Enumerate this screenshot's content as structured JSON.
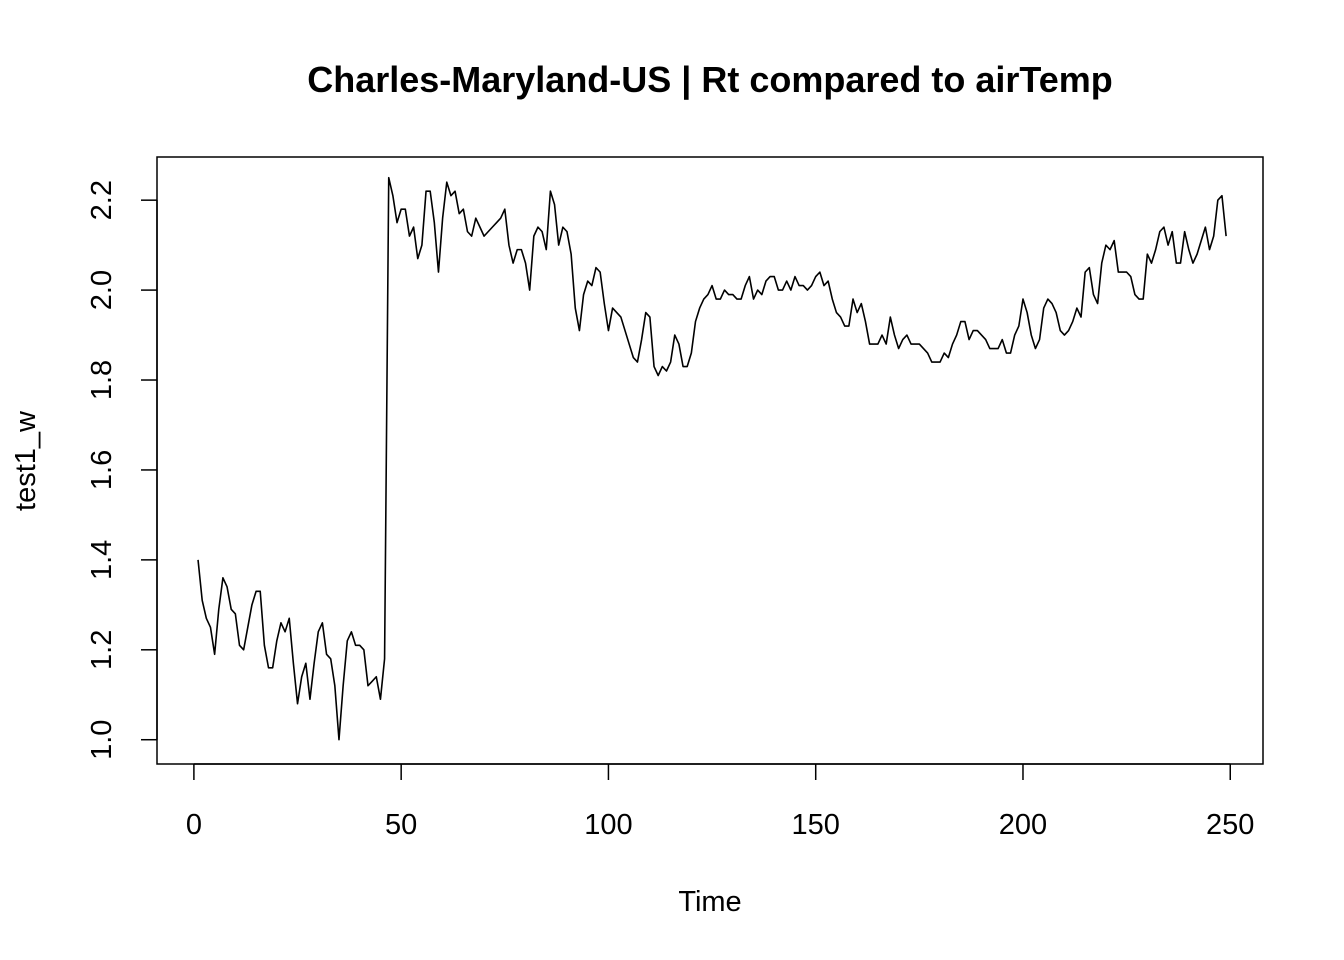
{
  "chart_data": {
    "type": "line",
    "title": "Charles-Maryland-US | Rt compared to airTemp",
    "xlabel": "Time",
    "ylabel": "test1_w",
    "xlim": [
      -8.9,
      257.9
    ],
    "ylim": [
      0.946,
      2.296
    ],
    "x_ticks": [
      0,
      50,
      100,
      150,
      200,
      250
    ],
    "y_ticks": [
      1.0,
      1.2,
      1.4,
      1.6,
      1.8,
      2.0,
      2.2
    ],
    "x_tick_labels": [
      "0",
      "50",
      "100",
      "150",
      "200",
      "250"
    ],
    "y_tick_labels": [
      "1.0",
      "1.2",
      "1.4",
      "1.6",
      "1.8",
      "2.0",
      "2.2"
    ],
    "grid": false,
    "line_color": "#000000",
    "series": [
      {
        "x_start": 1,
        "x_step": 1,
        "values": [
          1.4,
          1.31,
          1.27,
          1.25,
          1.19,
          1.29,
          1.36,
          1.34,
          1.29,
          1.28,
          1.21,
          1.2,
          1.25,
          1.3,
          1.33,
          1.33,
          1.21,
          1.16,
          1.16,
          1.22,
          1.26,
          1.24,
          1.27,
          1.17,
          1.08,
          1.14,
          1.17,
          1.09,
          1.17,
          1.24,
          1.26,
          1.19,
          1.18,
          1.12,
          1.0,
          1.12,
          1.22,
          1.24,
          1.21,
          1.21,
          1.2,
          1.12,
          1.13,
          1.14,
          1.09,
          1.18,
          2.25,
          2.21,
          2.15,
          2.18,
          2.18,
          2.12,
          2.14,
          2.07,
          2.1,
          2.22,
          2.22,
          2.15,
          2.04,
          2.16,
          2.24,
          2.21,
          2.22,
          2.17,
          2.18,
          2.13,
          2.12,
          2.16,
          2.14,
          2.12,
          2.13,
          2.14,
          2.15,
          2.16,
          2.18,
          2.1,
          2.06,
          2.09,
          2.09,
          2.06,
          2.0,
          2.12,
          2.14,
          2.13,
          2.09,
          2.22,
          2.19,
          2.1,
          2.14,
          2.13,
          2.08,
          1.96,
          1.91,
          1.99,
          2.02,
          2.01,
          2.05,
          2.04,
          1.97,
          1.91,
          1.96,
          1.95,
          1.94,
          1.91,
          1.88,
          1.85,
          1.84,
          1.89,
          1.95,
          1.94,
          1.83,
          1.81,
          1.83,
          1.82,
          1.84,
          1.9,
          1.88,
          1.83,
          1.83,
          1.86,
          1.93,
          1.96,
          1.98,
          1.99,
          2.01,
          1.98,
          1.98,
          2.0,
          1.99,
          1.99,
          1.98,
          1.98,
          2.01,
          2.03,
          1.98,
          2.0,
          1.99,
          2.02,
          2.03,
          2.03,
          2.0,
          2.0,
          2.02,
          2.0,
          2.03,
          2.01,
          2.01,
          2.0,
          2.01,
          2.03,
          2.04,
          2.01,
          2.02,
          1.98,
          1.95,
          1.94,
          1.92,
          1.92,
          1.98,
          1.95,
          1.97,
          1.93,
          1.88,
          1.88,
          1.88,
          1.9,
          1.88,
          1.94,
          1.9,
          1.87,
          1.89,
          1.9,
          1.88,
          1.88,
          1.88,
          1.87,
          1.86,
          1.84,
          1.84,
          1.84,
          1.86,
          1.85,
          1.88,
          1.9,
          1.93,
          1.93,
          1.89,
          1.91,
          1.91,
          1.9,
          1.89,
          1.87,
          1.87,
          1.87,
          1.89,
          1.86,
          1.86,
          1.9,
          1.92,
          1.98,
          1.95,
          1.9,
          1.87,
          1.89,
          1.96,
          1.98,
          1.97,
          1.95,
          1.91,
          1.9,
          1.91,
          1.93,
          1.96,
          1.94,
          2.04,
          2.05,
          1.99,
          1.97,
          2.06,
          2.1,
          2.09,
          2.11,
          2.04,
          2.04,
          2.04,
          2.03,
          1.99,
          1.98,
          1.98,
          2.08,
          2.06,
          2.09,
          2.13,
          2.14,
          2.1,
          2.13,
          2.06,
          2.06,
          2.13,
          2.09,
          2.06,
          2.08,
          2.11,
          2.14,
          2.09,
          2.12,
          2.2,
          2.21,
          2.12
        ]
      }
    ]
  }
}
